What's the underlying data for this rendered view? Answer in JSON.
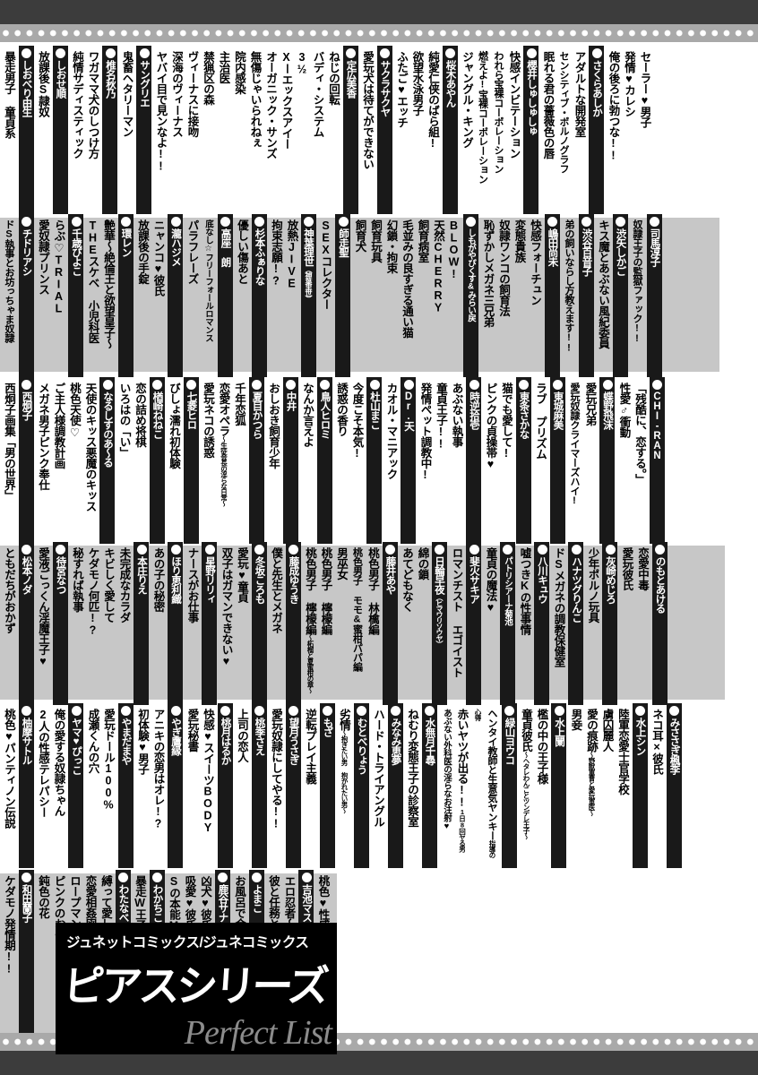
{
  "logo": {
    "line1": "ジュネットコミックス/ジュネコミックス",
    "line2": "ピアスシリーズ",
    "line3": "Perfect List"
  },
  "colors": {
    "row_band_gray": "#c7c7c7",
    "author_bar": "#191919",
    "film_band": "#3c3c3c",
    "dots_strip": "#a9a9a9",
    "title_text": "#000000",
    "author_text": "#ffffff"
  },
  "rows": [
    {
      "shade": "white",
      "groups": [
        {
          "author": null,
          "works": [
            "セーラー♥男子",
            "発情♥カレシ",
            "俺の後ろに勃つな!!"
          ]
        },
        {
          "author": {
            "name": "さくらあしか"
          },
          "works": [
            "アダルトな開発室",
            "センシティブ・ポルノグラフ",
            "眠れる君の薔薇色の唇"
          ]
        },
        {
          "author": {
            "name": "櫻井しゅしゅしゅ"
          },
          "works": [
            "快感インビテーション",
            "われら宝裸コーポレーション",
            "燃えよ!宝裸コーポレーション",
            "ジャングル・キング"
          ]
        },
        {
          "author": {
            "name": "桜木あやん"
          },
          "works": [
            "純愛仁侠のばら組!",
            "欲望水泳男子",
            "ふたご♥エッチ"
          ]
        },
        {
          "author": {
            "name": "サクラサクヤ"
          },
          "works": [
            "愛玩犬は待てができない"
          ]
        },
        {
          "author": {
            "name": "定広美香"
          },
          "works": [
            "ねじの回転",
            "バディ・システム",
            "3½",
            "Xーエックスアイー",
            "オーガニック・サンズ",
            "無傷じゃいられねぇ",
            "院内感染",
            "主治医",
            "禁猟区の森",
            "ヴィーナスに接吻",
            "深海のヴィーナス",
            "ヤバイ目で見ンなよ!!"
          ]
        },
        {
          "author": {
            "name": "サングリエ"
          },
          "works": [
            "鬼畜ヘタリーマン"
          ]
        },
        {
          "author": {
            "name": "椎名秋乃"
          },
          "works": [
            "ワガママ犬のしつけ方",
            "純情サディスティック"
          ]
        },
        {
          "author": {
            "name": "しおせ順"
          },
          "works": [
            "放課後S隷奴"
          ]
        },
        {
          "author": {
            "name": "しおべり由生"
          },
          "works": [
            "暴走男子 童貞系"
          ]
        }
      ]
    },
    {
      "shade": "gray",
      "groups": [
        {
          "author": {
            "name": "司馬淳子"
          },
          "works": [
            "奴隷王子の監獄ファック!!"
          ]
        },
        {
          "author": {
            "name": "渋矢しかご"
          },
          "works": [
            "キス魔とあぶない風紀委員"
          ]
        },
        {
          "author": {
            "name": "渋谷百音子"
          },
          "works": [
            "弟の飼いならし方教えます!!"
          ]
        },
        {
          "author": {
            "name": "嶋田尚未"
          },
          "works": [
            "快感フォーチュン",
            "変態貴族",
            "奴隷ワンコの飼育法",
            "恥ずかしメガネ三兄弟"
          ]
        },
        {
          "author": {
            "name": "しもがやぴくす&みらい戻"
          },
          "works": [
            "BLOW!",
            "天然CHERRY",
            "飼育病室",
            "毛並みの良すぎる通い猫",
            "幻鎖・拘束",
            "飼育玩具",
            "飼育犬"
          ]
        },
        {
          "author": {
            "name": "師走聖"
          },
          "works": [
            "SEXコレクター"
          ]
        },
        {
          "author": {
            "name": "神葉理世",
            "sub": "（神葉里世）"
          },
          "works": [
            "放熱JIVE",
            "拘束志願!?"
          ]
        },
        {
          "author": {
            "name": "杉本ふぁりな"
          },
          "works": [
            "優しい傷あと"
          ]
        },
        {
          "author": {
            "name": "高座 朗"
          },
          "works": [
            "底なし☆フリーフォールロマンス",
            "パラフレーズ"
          ]
        },
        {
          "author": {
            "name": "瀧ハジメ"
          },
          "works": [
            "ニャンコ♥彼氏",
            "放課後の手錠"
          ]
        },
        {
          "author": {
            "name": "環レン"
          },
          "works": [
            "艶華〜絶倫王と欲望皇子〜",
            "THEスケベ 小児科医"
          ]
        },
        {
          "author": {
            "name": "千歳ぴよこ"
          },
          "works": [
            "らぶ♡TRIAL",
            "愛奴隷プリンス"
          ]
        },
        {
          "author": {
            "name": "チドリアシ"
          },
          "works": [
            "ドS執事とお坊っちゃま奴隷"
          ]
        }
      ]
    },
    {
      "shade": "white",
      "groups": [
        {
          "author": {
            "name": "CHI-RAN"
          },
          "works": [
            "「残酷に、恋する。」",
            "性愛♂衝動"
          ]
        },
        {
          "author": {
            "name": "蝶野飛沫"
          },
          "works": [
            "愛玩兄弟",
            "愛玩奴隷クライマーズハイ!"
          ]
        },
        {
          "author": {
            "name": "東城麻美"
          },
          "works": [
            "ラブ プリズム"
          ]
        },
        {
          "author": {
            "name": "東条さかな"
          },
          "works": [
            "猫でも愛して!",
            "ピンクの貞操帯♥"
          ]
        },
        {
          "author": {
            "name": "時逆拾壱"
          },
          "works": [
            "あぶない執事",
            "童貞王子!!",
            "発情ペット調教中!"
          ]
        },
        {
          "author": {
            "name": "Dr.天"
          },
          "works": [
            "カオル・マニアック"
          ]
        },
        {
          "author": {
            "name": "杜山まこ"
          },
          "works": [
            "今度こそ本気!",
            "誘惑の香り"
          ]
        },
        {
          "author": {
            "name": "鳥人ヒロミ"
          },
          "works": [
            "なんか言えよ"
          ]
        },
        {
          "author": {
            "name": "中井"
          },
          "works": [
            "おしおき飼育少年"
          ]
        },
        {
          "author": {
            "name": "夏目かつら"
          },
          "works": [
            "千年恋狐",
            {
              "t": "恋愛オペラ",
              "s": "〜生徒会長の淫らな日常〜"
            },
            "愛玩ネコの誘惑"
          ]
        },
        {
          "author": {
            "name": "七菱ヒロ"
          },
          "works": [
            "びしょ濡れ初体験"
          ]
        },
        {
          "author": {
            "name": "楢崎ねねこ"
          },
          "works": [
            "恋の詰め将棋",
            "いろはの「い」"
          ]
        },
        {
          "author": {
            "name": "なるしすのあ〜る"
          },
          "works": [
            "天使のキッス悪魔のキッス",
            "桃色天使♡",
            "ご主人様調教計画",
            "メガネ男子ピンク奉仕"
          ]
        },
        {
          "author": {
            "name": "西炯子"
          },
          "works": [
            "西炯子画集「男の世界」"
          ]
        }
      ]
    },
    {
      "shade": "gray",
      "groups": [
        {
          "author": {
            "name": "のもとあける"
          },
          "works": [
            "恋愛中毒",
            "愛玩彼氏"
          ]
        },
        {
          "author": {
            "name": "灰崎めじろ"
          },
          "works": [
            "少年ポルノ玩具"
          ]
        },
        {
          "author": {
            "name": "ハナツグりんこ"
          },
          "works": [
            "ドSメガネの調教保健室"
          ]
        },
        {
          "author": {
            "name": "八川キュウ"
          },
          "works": [
            "嘘つきKの性事情"
          ]
        },
        {
          "author": {
            "name": "パトリシアーナ菊池"
          },
          "works": [
            "童貞の魔法♥"
          ]
        },
        {
          "author": {
            "name": "斐火サキア"
          },
          "works": [
            "ロマンチスト エゴイスト"
          ]
        },
        {
          "author": {
            "name": "日輪早夜",
            "sub": "（ヒマワリソウヤ）"
          },
          "works": [
            "綿の鎖",
            "あてどもなく"
          ]
        },
        {
          "author": {
            "name": "藤井あや"
          },
          "works": [
            "桃色男子 林檎編",
            "桃色男子 モモ&蜜柑パパ編",
            "男巫女",
            "桃色男子 檸檬編",
            {
              "t": "桃色男子 檸檬編",
              "s": "〜柘榴と夏蜜柑の章〜"
            }
          ]
        },
        {
          "author": {
            "name": "藤成ゆうき"
          },
          "works": [
            "僕と先生とメガネ"
          ]
        },
        {
          "author": {
            "name": "冬坂ころも"
          },
          "works": [
            "愛玩♥童貞",
            "双子はガマンできない♥"
          ]
        },
        {
          "author": {
            "name": "星野リリィ"
          },
          "works": [
            "ナースがお仕事"
          ]
        },
        {
          "author": {
            "name": "ほり恵利織"
          },
          "works": [
            "あの子の秘密"
          ]
        },
        {
          "author": {
            "name": "本庄りえ"
          },
          "works": [
            "未完成なカラダ",
            "キビしく愛して",
            "ケダモノ何匹!?",
            "秘すれば執事"
          ]
        },
        {
          "author": {
            "name": "待宮なつ"
          },
          "works": [
            "愛液ごっくん淫魔王子♥"
          ]
        },
        {
          "author": {
            "name": "松本ノダ"
          },
          "works": [
            "ともだちがおかず"
          ]
        }
      ]
    },
    {
      "shade": "white",
      "groups": [
        {
          "author": {
            "name": "みささぎ楓李"
          },
          "works": [
            "ネコ耳×彼氏"
          ]
        },
        {
          "author": {
            "name": "水上シン"
          },
          "works": [
            "陸軍恋愛士官学校",
            "虜囚麗人",
            {
              "t": "愛の痕跡",
              "s": "〜野獣軍曹と愛玩軍医〜"
            },
            "男妾"
          ]
        },
        {
          "author": {
            "name": "水上闌"
          },
          "works": [
            "檻の中の王子様",
            {
              "t": "童貞彼氏",
              "s": "〜ヘタレわんことツンデレ王子〜"
            }
          ]
        },
        {
          "author": {
            "name": "緑山ヨウコ"
          },
          "works": [
            {
              "t": "ヘンタイ教師と生意気ヤンキー",
              "s": "指導の心得"
            },
            {
              "t": "赤いヤツが出る!!",
              "s": "1日8回ヤる男"
            },
            "あぶない外科医の淫らなお注射♥"
          ]
        },
        {
          "author": {
            "name": "水無月千尋"
          },
          "works": [
            "ねむり変態王子の診察室"
          ]
        },
        {
          "author": {
            "name": "みなみ恵夢"
          },
          "works": [
            "ハード・トライアングル"
          ]
        },
        {
          "author": {
            "name": "むとべりょう"
          },
          "works": [
            {
              "t": "劣情",
              "s": "〜抱きたい男 抱かれたい男〜"
            }
          ]
        },
        {
          "author": {
            "name": "もざ"
          },
          "works": [
            "逆転プレイ主義"
          ]
        },
        {
          "author": {
            "name": "望月うさぎ"
          },
          "works": [
            "愛玩奴隷にしてやる!!"
          ]
        },
        {
          "author": {
            "name": "桃季さえ"
          },
          "works": [
            "上司の恋人"
          ]
        },
        {
          "author": {
            "name": "桃月はるか"
          },
          "works": [
            "快感♥スイーツBODY",
            "愛玩秘書"
          ]
        },
        {
          "author": {
            "name": "やぎ鷹縁"
          },
          "works": [
            "アニキの恋男はオレ!?",
            "初体験♥男子"
          ]
        },
        {
          "author": {
            "name": "やまだまや"
          },
          "works": [
            "愛玩ドール100%",
            "成瀬くんの穴"
          ]
        },
        {
          "author": {
            "name": "ヤマ♥ぴっこ"
          },
          "works": [
            "俺の愛する奴隷ちゃん",
            "2人の性感テレパシー"
          ]
        },
        {
          "author": {
            "name": "柚摩サトル"
          },
          "works": [
            "桃色♥パンティノン伝説"
          ]
        }
      ]
    },
    {
      "shade": "gray",
      "groups": [
        {
          "author": null,
          "works": [
            "桃色♥性感カルテ"
          ]
        },
        {
          "author": {
            "name": "吉池マスコ"
          },
          "works": [
            "エロ忍者〜桃尻忍法帳〜",
            "彼と任務とセックスと。"
          ]
        },
        {
          "author": {
            "name": "よまこ"
          },
          "works": [
            "お風呂で合体計画♥"
          ]
        },
        {
          "author": {
            "name": "鹿谷サナエ"
          },
          "works": [
            "凶犬♥彼氏",
            "吸愛♥彼氏",
            "Sの本能Mの恋情"
          ]
        },
        {
          "author": {
            "name": "わかちこ"
          },
          "works": [
            "暴走W王子"
          ]
        },
        {
          "author": {
            "name": "わたなべ あじあ"
          },
          "works": [
            "縛って愛して♡",
            "恋愛相姦図",
            "ロープマン",
            "ピンクのおもちゃ",
            "鈍色の花"
          ]
        },
        {
          "author": {
            "name": "和田蘭子"
          },
          "works": [
            "ケダモノ発情期!!"
          ]
        }
      ]
    }
  ]
}
